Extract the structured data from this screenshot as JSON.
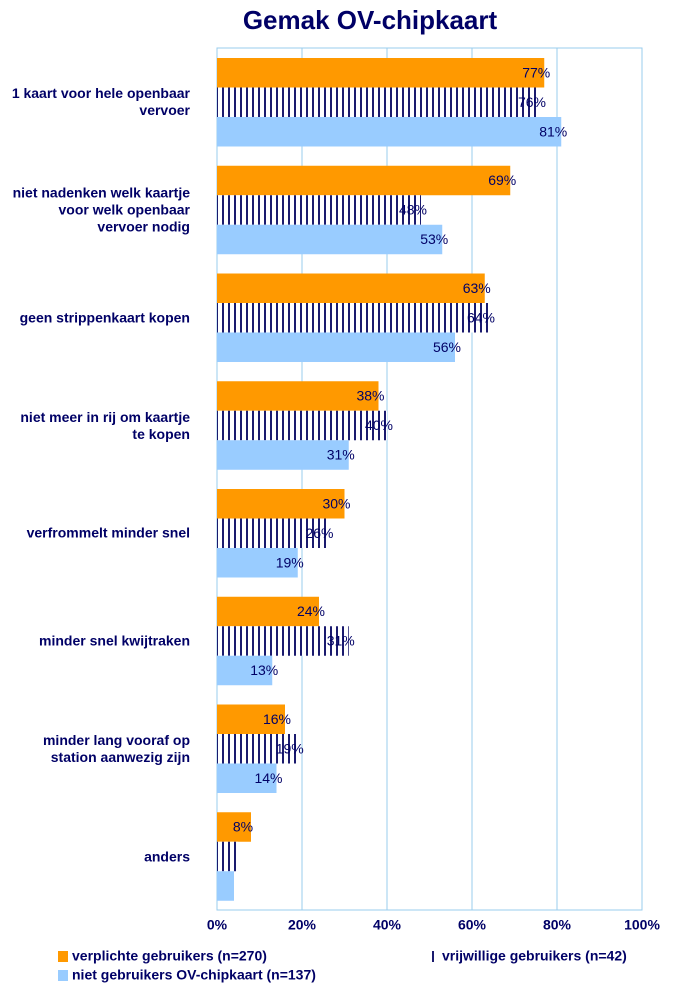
{
  "chart_data": {
    "type": "bar",
    "orientation": "horizontal",
    "title": "Gemak OV-chipkaart",
    "categories": [
      "1 kaart voor hele openbaar vervoer",
      "niet nadenken welk kaartje voor welk openbaar vervoer nodig",
      "geen strippenkaart kopen",
      "niet meer in rij om kaartje te kopen",
      "verfrommelt minder snel",
      "minder snel kwijtraken",
      "minder lang vooraf op station aanwezig zijn",
      "anders"
    ],
    "series": [
      {
        "name": "verplichte gebruikers (n=270)",
        "color": "#ff9900",
        "values": [
          77,
          69,
          63,
          38,
          30,
          24,
          16,
          8
        ],
        "value_labels": [
          "77%",
          "69%",
          "63%",
          "38%",
          "30%",
          "24%",
          "16%",
          "8%"
        ]
      },
      {
        "name": "vrijwillige gebruikers (n=42)",
        "color": "#1a1a6e",
        "values": [
          76,
          48,
          64,
          40,
          26,
          31,
          19,
          5
        ],
        "value_labels": [
          "76%",
          "48%",
          "64%",
          "40%",
          "26%",
          "31%",
          "19%",
          null
        ]
      },
      {
        "name": "niet gebruikers OV-chipkaart (n=137)",
        "color": "#99ccff",
        "values": [
          81,
          53,
          56,
          31,
          19,
          13,
          14,
          4
        ],
        "value_labels": [
          "81%",
          "53%",
          "56%",
          "31%",
          "19%",
          "13%",
          "14%",
          null
        ]
      }
    ],
    "xlim": [
      0,
      100
    ],
    "xticks": [
      {
        "value": 0,
        "label": "0%"
      },
      {
        "value": 20,
        "label": "20%"
      },
      {
        "value": 40,
        "label": "40%"
      },
      {
        "value": 60,
        "label": "60%"
      },
      {
        "value": 80,
        "label": "80%"
      },
      {
        "value": 100,
        "label": "100%"
      }
    ],
    "grid": true
  }
}
